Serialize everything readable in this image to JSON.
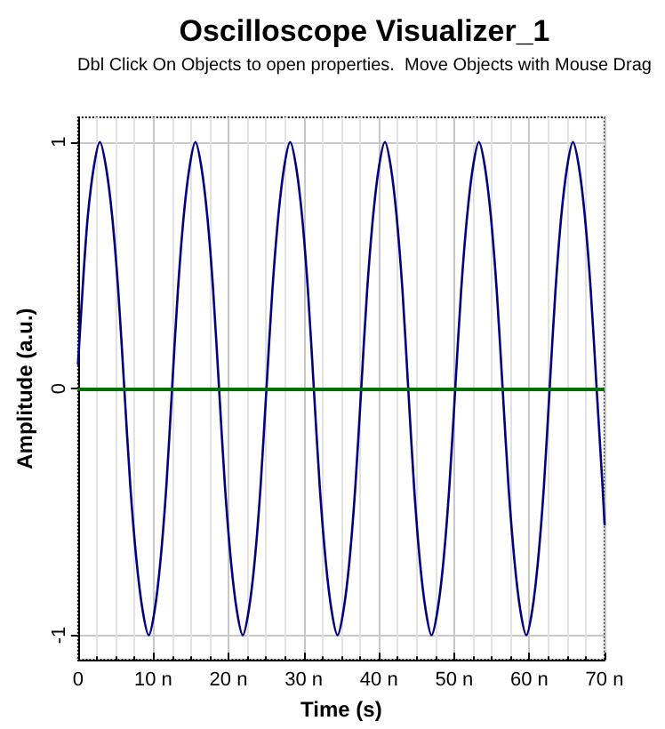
{
  "chart_data": {
    "type": "line",
    "title": "Oscilloscope Visualizer_1",
    "subtitle": "Dbl Click On Objects to open properties.  Move Objects with Mouse Drag",
    "xlabel": "Time (s)",
    "ylabel": "Amplitude (a.u.)",
    "x": [
      0,
      0.7,
      1.3,
      2.1,
      2.9,
      3.71,
      4.53,
      5.34,
      6.15,
      6.96,
      7.78,
      8.59,
      9.4,
      10.18,
      10.95,
      11.73,
      12.5,
      13.28,
      14.05,
      14.83,
      15.6,
      16.39,
      17.18,
      17.96,
      18.75,
      19.54,
      20.33,
      21.11,
      21.9,
      22.69,
      23.48,
      24.26,
      25.05,
      25.84,
      26.63,
      27.41,
      28.2,
      28.99,
      29.78,
      30.56,
      31.35,
      32.14,
      32.93,
      33.71,
      34.5,
      35.29,
      36.08,
      36.86,
      37.65,
      38.44,
      39.23,
      40.01,
      40.8,
      41.58,
      42.35,
      43.13,
      43.9,
      44.68,
      45.45,
      46.23,
      47.0,
      47.79,
      48.58,
      49.36,
      50.15,
      50.94,
      51.73,
      52.51,
      53.3,
      54.09,
      54.88,
      55.66,
      56.45,
      57.24,
      58.03,
      58.81,
      59.6,
      60.38,
      61.15,
      61.93,
      62.7,
      63.48,
      64.25,
      65.03,
      65.8,
      66.59,
      67.38,
      68.16,
      68.95,
      69.74,
      70
    ],
    "series": [
      {
        "color": "#000080",
        "values": [
          0.1,
          0.45,
          0.7,
          0.9,
          1,
          0.9,
          0.7,
          0.4,
          0,
          -0.4,
          -0.7,
          -0.9,
          -1,
          -0.9,
          -0.7,
          -0.4,
          0,
          0.4,
          0.7,
          0.9,
          1,
          0.9,
          0.7,
          0.4,
          0,
          -0.4,
          -0.7,
          -0.9,
          -1,
          -0.9,
          -0.7,
          -0.4,
          0,
          0.4,
          0.7,
          0.9,
          1,
          0.9,
          0.7,
          0.4,
          0,
          -0.4,
          -0.7,
          -0.9,
          -1,
          -0.9,
          -0.7,
          -0.4,
          0,
          0.4,
          0.7,
          0.9,
          1,
          0.9,
          0.7,
          0.4,
          0,
          -0.4,
          -0.7,
          -0.9,
          -1,
          -0.9,
          -0.7,
          -0.4,
          0,
          0.4,
          0.7,
          0.9,
          1,
          0.9,
          0.7,
          0.4,
          0,
          -0.4,
          -0.7,
          -0.9,
          -1,
          -0.9,
          -0.7,
          -0.4,
          0,
          0.4,
          0.7,
          0.9,
          1,
          0.9,
          0.7,
          0.4,
          0,
          -0.4,
          -0.55
        ]
      }
    ],
    "xlim": [
      0,
      70
    ],
    "ylim": [
      -1.1,
      1.1
    ],
    "xticks": [
      {
        "value": 0,
        "label": "0"
      },
      {
        "value": 10,
        "label": "10 n"
      },
      {
        "value": 20,
        "label": "20 n"
      },
      {
        "value": 30,
        "label": "30 n"
      },
      {
        "value": 40,
        "label": "40 n"
      },
      {
        "value": 50,
        "label": "50 n"
      },
      {
        "value": 60,
        "label": "60 n"
      },
      {
        "value": 70,
        "label": "70 n"
      }
    ],
    "yticks": [
      -1,
      0,
      1
    ],
    "ref_lines": [
      {
        "axis": "y",
        "value": 0,
        "color": "#007000"
      }
    ],
    "grid": true,
    "marker": "none",
    "line_style": "solid"
  }
}
